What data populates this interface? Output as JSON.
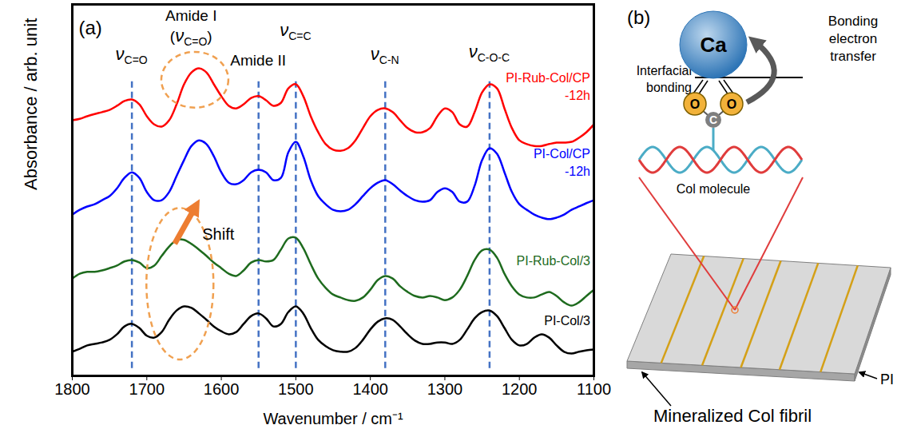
{
  "chart_data": {
    "type": "line",
    "panel_label": "(a)",
    "xlabel": "Wavenumber / cm⁻¹",
    "ylabel": "Absorbance / arb. unit",
    "xlim": [
      1800,
      1100
    ],
    "xticks": [
      1800,
      1700,
      1600,
      1500,
      1400,
      1300,
      1200,
      1100
    ],
    "ylim": [
      0,
      100
    ],
    "tick_labels": "x",
    "grid": false,
    "x": [
      1800,
      1790,
      1780,
      1770,
      1760,
      1750,
      1740,
      1730,
      1720,
      1710,
      1700,
      1690,
      1680,
      1670,
      1660,
      1650,
      1640,
      1630,
      1620,
      1610,
      1600,
      1590,
      1580,
      1570,
      1560,
      1550,
      1540,
      1530,
      1520,
      1510,
      1500,
      1490,
      1480,
      1470,
      1460,
      1450,
      1440,
      1430,
      1420,
      1410,
      1400,
      1390,
      1380,
      1370,
      1360,
      1350,
      1340,
      1330,
      1320,
      1310,
      1300,
      1290,
      1280,
      1270,
      1260,
      1250,
      1240,
      1230,
      1220,
      1210,
      1200,
      1190,
      1180,
      1170,
      1160,
      1150,
      1140,
      1130,
      1120,
      1110,
      1100
    ],
    "series": [
      {
        "name": "PI-Rub-Col/CP-12h",
        "color": "#ff0000",
        "values": [
          68.8,
          69.2,
          69.9,
          70.5,
          71.0,
          71.6,
          72.7,
          74.0,
          74.4,
          73.1,
          69.9,
          67.7,
          67.1,
          68.8,
          73.1,
          78.5,
          81.7,
          82.8,
          81.7,
          78.5,
          75.3,
          72.7,
          72.0,
          73.1,
          74.8,
          75.3,
          74.2,
          72.7,
          73.5,
          77.4,
          78.5,
          75.3,
          69.9,
          65.6,
          62.4,
          60.9,
          60.6,
          61.3,
          63.4,
          66.7,
          69.9,
          71.6,
          72.0,
          71.0,
          68.8,
          66.7,
          65.6,
          65.6,
          66.7,
          69.9,
          72.0,
          71.0,
          67.7,
          67.1,
          71.0,
          76.3,
          78.5,
          77.4,
          72.0,
          66.7,
          63.4,
          62.4,
          61.9,
          61.9,
          62.4,
          62.8,
          62.8,
          63.0,
          64.1,
          65.6,
          67.7
        ]
      },
      {
        "name": "PI-Col/CP-12h",
        "color": "#0000ff",
        "values": [
          43.4,
          44.7,
          45.6,
          46.2,
          47.3,
          48.4,
          50.5,
          53.3,
          54.8,
          53.3,
          49.5,
          47.3,
          47.3,
          49.5,
          53.8,
          58.1,
          61.9,
          63.4,
          62.4,
          59.1,
          54.8,
          52.0,
          51.6,
          52.7,
          54.8,
          55.5,
          54.8,
          52.7,
          53.3,
          60.2,
          63.0,
          59.1,
          52.7,
          48.4,
          46.2,
          44.7,
          44.3,
          44.7,
          46.2,
          48.4,
          50.5,
          52.0,
          52.7,
          51.6,
          49.9,
          48.4,
          47.3,
          46.9,
          47.3,
          49.5,
          50.5,
          49.5,
          46.9,
          46.9,
          51.2,
          58.1,
          61.3,
          59.8,
          54.8,
          49.5,
          46.2,
          44.7,
          43.4,
          42.6,
          42.2,
          42.6,
          43.4,
          44.7,
          45.6,
          46.5,
          47.3
        ]
      },
      {
        "name": "PI-Rub-Col/3",
        "color": "#1e6b1e",
        "values": [
          26.2,
          27.5,
          28.0,
          28.0,
          28.4,
          29.0,
          29.7,
          30.8,
          31.2,
          30.5,
          29.0,
          29.7,
          32.3,
          34.8,
          36.6,
          36.6,
          35.5,
          34.0,
          32.3,
          30.5,
          29.0,
          27.5,
          26.9,
          28.4,
          30.5,
          31.2,
          30.8,
          31.2,
          34.0,
          37.0,
          37.2,
          34.4,
          30.1,
          26.2,
          23.7,
          21.9,
          21.1,
          20.4,
          20.2,
          21.1,
          23.2,
          25.8,
          26.9,
          26.2,
          24.1,
          22.6,
          21.5,
          21.1,
          21.5,
          21.1,
          20.4,
          21.1,
          23.2,
          26.9,
          31.2,
          33.8,
          34.0,
          31.8,
          27.5,
          24.1,
          21.9,
          21.1,
          21.1,
          21.9,
          22.6,
          21.5,
          19.8,
          18.9,
          19.8,
          21.5,
          23.2
        ]
      },
      {
        "name": "PI-Col/3",
        "color": "#000000",
        "values": [
          6.5,
          7.3,
          8.2,
          8.6,
          9.0,
          9.7,
          11.2,
          13.3,
          14.0,
          12.9,
          10.8,
          10.3,
          11.8,
          15.1,
          17.6,
          18.7,
          18.3,
          16.8,
          15.1,
          13.3,
          12.0,
          11.2,
          11.8,
          14.0,
          16.1,
          16.8,
          15.5,
          13.3,
          14.0,
          17.2,
          18.7,
          16.8,
          12.9,
          9.7,
          8.0,
          6.9,
          6.5,
          6.5,
          7.5,
          9.7,
          12.5,
          14.6,
          15.5,
          15.1,
          13.3,
          11.2,
          9.5,
          8.6,
          8.6,
          9.0,
          9.0,
          8.6,
          9.7,
          12.5,
          15.5,
          17.2,
          17.6,
          16.1,
          12.9,
          9.7,
          8.2,
          8.6,
          10.3,
          11.2,
          10.3,
          8.2,
          6.5,
          6.0,
          6.5,
          6.9,
          7.1
        ]
      }
    ],
    "annotations": [
      {
        "parts": [
          {
            "text": "ν"
          },
          {
            "text": "C=O",
            "sub": true
          }
        ],
        "x": 1720,
        "y": 85
      },
      {
        "parts": [
          {
            "text": "Amide I"
          }
        ],
        "x": 1640,
        "y": 95.5
      },
      {
        "parts": [
          {
            "text": "("
          },
          {
            "text": "ν"
          },
          {
            "text": "C=O",
            "sub": true
          },
          {
            "text": ")"
          }
        ],
        "x": 1640,
        "y": 90
      },
      {
        "parts": [
          {
            "text": "Amide II"
          }
        ],
        "x": 1550,
        "y": 83.4
      },
      {
        "parts": [
          {
            "text": "ν"
          },
          {
            "text": "C=C",
            "sub": true
          }
        ],
        "x": 1500,
        "y": 91.4
      },
      {
        "parts": [
          {
            "text": "ν"
          },
          {
            "text": "C-N",
            "sub": true
          }
        ],
        "x": 1380,
        "y": 85
      },
      {
        "parts": [
          {
            "text": "ν"
          },
          {
            "text": "C-O-C",
            "sub": true
          }
        ],
        "x": 1240,
        "y": 85.6
      }
    ],
    "reference_lines": {
      "x": [
        1720,
        1550,
        1500,
        1380,
        1240
      ],
      "y": [
        2,
        80
      ],
      "color": "#4472c4"
    },
    "highlights": [
      {
        "cx": 1635,
        "cy": 79.6,
        "rx": 45,
        "ry": 7.5,
        "color": "#f0a050"
      },
      {
        "cx": 1655,
        "cy": 24.7,
        "rx": 45,
        "ry": 20.4,
        "color": "#f0a050"
      }
    ],
    "arrow": {
      "from": [
        1662,
        35.5
      ],
      "to": [
        1634,
        45.5
      ],
      "label": "Shift",
      "label_at": [
        1625,
        36.6
      ],
      "color": "#ed7d31"
    }
  },
  "diagram": {
    "panel_label": "(b)",
    "ion": "Ca",
    "oxygen": "O",
    "carbon": "C",
    "interface_label": "Interfacial bonding",
    "transfer_label": "Bonding electron transfer",
    "molecule_label": "Col molecule",
    "substrate_label": "PI",
    "fibril_label": "Mineralized Col fibril"
  }
}
